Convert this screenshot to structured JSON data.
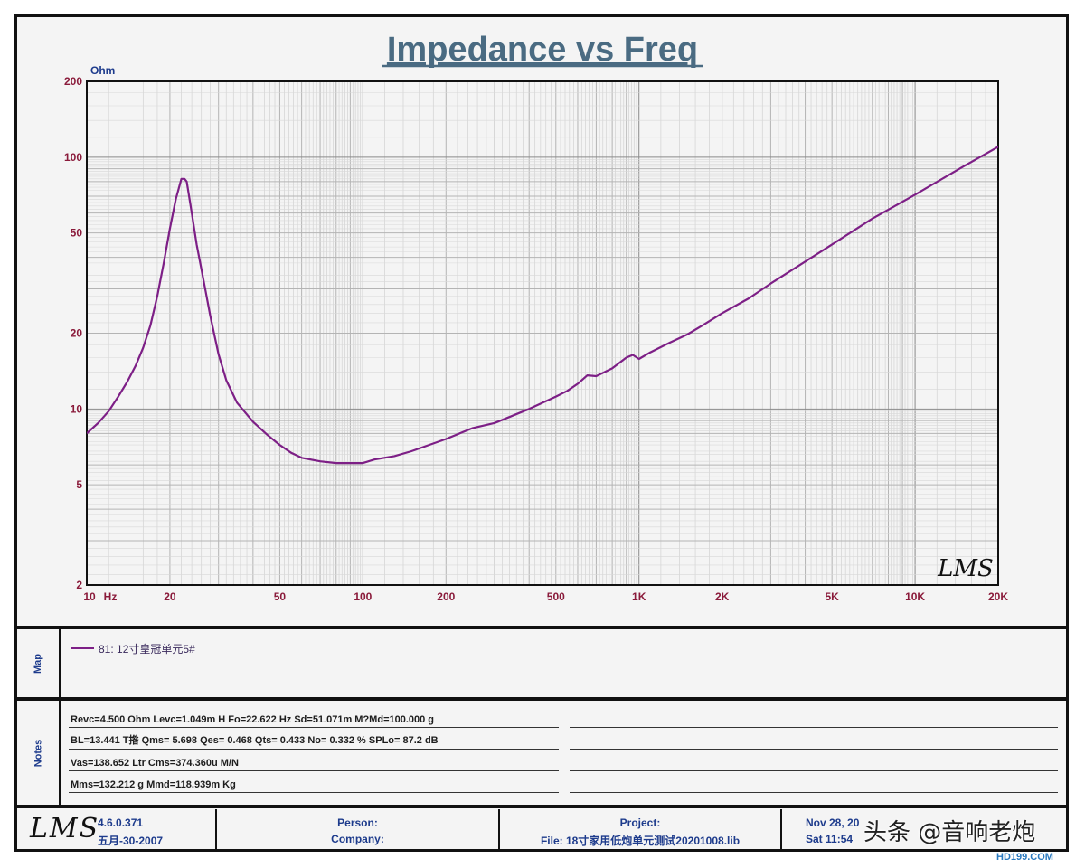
{
  "chart_data": {
    "type": "line",
    "title": "Impedance vs Freq",
    "ylabel": "Ohm",
    "xlabel": "",
    "x_scale": "log",
    "y_scale": "log",
    "xlim": [
      10,
      20000
    ],
    "ylim": [
      2,
      200
    ],
    "x_ticks": [
      {
        "value": 10,
        "label": "10"
      },
      {
        "value": 20,
        "label": "20"
      },
      {
        "value": 50,
        "label": "50"
      },
      {
        "value": 100,
        "label": "100"
      },
      {
        "value": 200,
        "label": "200"
      },
      {
        "value": 500,
        "label": "500"
      },
      {
        "value": 1000,
        "label": "1K"
      },
      {
        "value": 2000,
        "label": "2K"
      },
      {
        "value": 5000,
        "label": "5K"
      },
      {
        "value": 10000,
        "label": "10K"
      },
      {
        "value": 20000,
        "label": "20K"
      }
    ],
    "x_unit_label": "Hz",
    "y_ticks": [
      {
        "value": 2,
        "label": "2"
      },
      {
        "value": 5,
        "label": "5"
      },
      {
        "value": 10,
        "label": "10"
      },
      {
        "value": 20,
        "label": "20"
      },
      {
        "value": 50,
        "label": "50"
      },
      {
        "value": 100,
        "label": "100"
      },
      {
        "value": 200,
        "label": "200"
      }
    ],
    "grid": true,
    "series": [
      {
        "name": "81: 12寸皇冠单元5#",
        "color": "#7d1f86",
        "x": [
          10,
          11,
          12,
          13,
          14,
          15,
          16,
          17,
          18,
          19,
          20,
          21,
          22,
          22.6,
          23,
          24,
          25,
          26,
          27,
          28,
          30,
          32,
          35,
          40,
          45,
          50,
          55,
          60,
          70,
          80,
          90,
          100,
          110,
          130,
          150,
          200,
          250,
          300,
          400,
          500,
          550,
          600,
          650,
          700,
          800,
          900,
          950,
          1000,
          1100,
          1300,
          1500,
          1700,
          2000,
          2500,
          3000,
          4000,
          5000,
          7000,
          10000,
          15000,
          20000
        ],
        "y": [
          8,
          8.8,
          9.8,
          11.2,
          12.8,
          14.8,
          17.5,
          21.5,
          28,
          38,
          52,
          68,
          82,
          82,
          80,
          60,
          45,
          36,
          29,
          23.5,
          16.5,
          13,
          10.6,
          8.9,
          7.9,
          7.2,
          6.7,
          6.4,
          6.2,
          6.1,
          6.1,
          6.1,
          6.3,
          6.5,
          6.8,
          7.6,
          8.4,
          8.8,
          10,
          11.2,
          11.8,
          12.6,
          13.6,
          13.5,
          14.5,
          16,
          16.4,
          15.8,
          16.8,
          18.4,
          19.8,
          21.5,
          24,
          27.5,
          31.5,
          38.5,
          45,
          57,
          71,
          92,
          110
        ]
      }
    ]
  },
  "map": {
    "label": "Map",
    "legend": "81: 12寸皇冠单元5#"
  },
  "notes": {
    "label": "Notes",
    "lines": [
      "Revc=4.500 Ohm  Levc=1.049m H  Fo=22.622 Hz  Sd=51.071m M?Md=100.000 g",
      "BL=13.441 T揝  Qms= 5.698  Qes= 0.468  Qts= 0.433  No= 0.332 %  SPLo= 87.2 dB",
      "Vas=138.652 Ltr  Cms=374.360u M/N",
      "Mms=132.212 g  Mmd=118.939m Kg"
    ]
  },
  "footer": {
    "logo": "LMS",
    "version": "4.6.0.371",
    "version_date": "五月-30-2007",
    "person_label": "Person:",
    "company_label": "Company:",
    "project_label": "Project:",
    "file_label": "File: 18寸家用低炮单元测试20201008.lib",
    "date_line1": "Nov 28, 20",
    "date_line2": "Sat 11:54"
  },
  "watermark": {
    "main": "头条 @音响老炮",
    "site": "HD199.COM"
  },
  "chart_logo": "LMS"
}
